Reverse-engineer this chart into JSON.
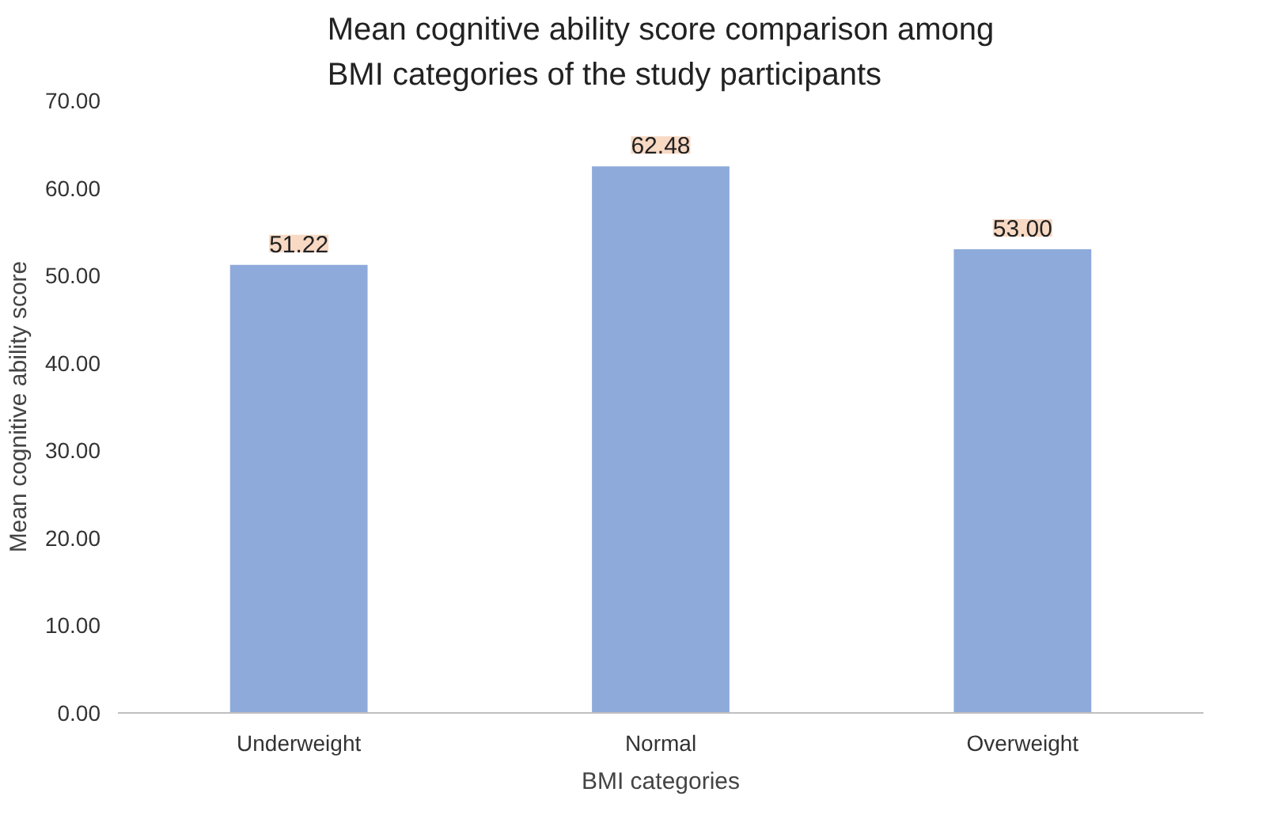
{
  "chart_data": {
    "type": "bar",
    "title": "Mean cognitive ability score comparison among BMI categories of the study participants",
    "xlabel": "BMI categories",
    "ylabel": "Mean cognitive ability score",
    "categories": [
      "Underweight",
      "Normal",
      "Overweight"
    ],
    "values": [
      51.22,
      62.48,
      53.0
    ],
    "value_labels": [
      "51.22",
      "62.48",
      "53.00"
    ],
    "color": "#8eaadb",
    "ylim": [
      0,
      70
    ],
    "yticks": [
      {
        "value": 0,
        "label": "0.00"
      },
      {
        "value": 10,
        "label": "10.00"
      },
      {
        "value": 20,
        "label": "20.00"
      },
      {
        "value": 30,
        "label": "30.00"
      },
      {
        "value": 40,
        "label": "40.00"
      },
      {
        "value": 50,
        "label": "50.00"
      },
      {
        "value": 60,
        "label": "60.00"
      },
      {
        "value": 70,
        "label": "70.00"
      }
    ],
    "grid": false
  }
}
